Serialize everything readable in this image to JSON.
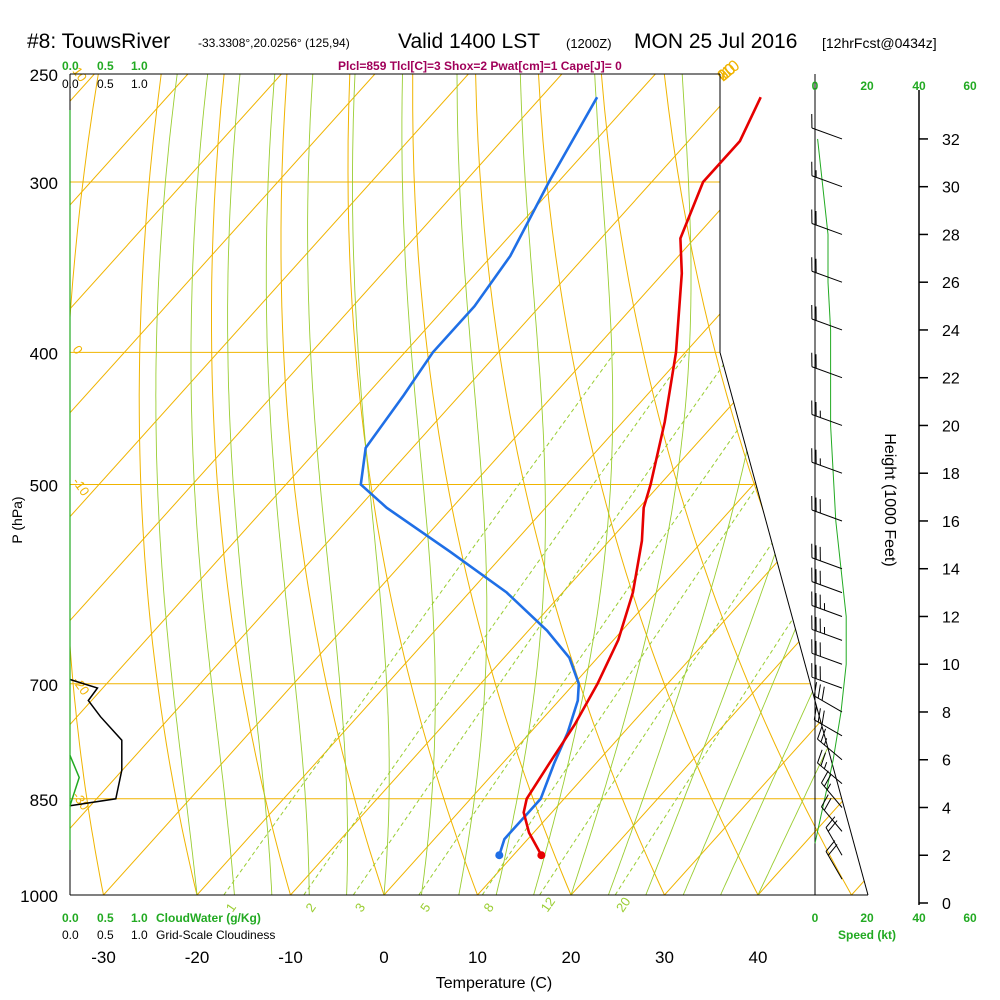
{
  "header": {
    "station": "#8: TouwsRiver",
    "coords": "-33.3308°,20.0256° (125,94)",
    "valid": "Valid 1400 LST",
    "zulu": "(1200Z)",
    "date": "MON 25 Jul 2016",
    "forecast": "[12hrFcst@0434z]",
    "indices": "Plcl=859 Tlcl[C]=3 Shox=2 Pwat[cm]=1 Cape[J]= 0"
  },
  "colors": {
    "isotherm": "#f0b400",
    "dry_adiabat": "#f0b400",
    "moist_adiabat": "#9acd32",
    "mixing_ratio": "#9acd32",
    "temperature": "#e60000",
    "dewpoint": "#1f6fe6",
    "cloudwater": "#22aa22",
    "cloudiness": "#000000",
    "wind_speed": "#22aa22",
    "indices_text": "#a0005a",
    "axis": "#000000"
  },
  "chart_data": {
    "type": "skew-t sounding",
    "xlabel": "Temperature (C)",
    "ylabel": "P (hPa)",
    "y2label": "Height (1000 Feet)",
    "x_ticks": [
      -30,
      -20,
      -10,
      0,
      10,
      20,
      30,
      40
    ],
    "pressure_ticks": [
      250,
      300,
      400,
      500,
      700,
      850,
      1000
    ],
    "height_ticks": [
      0,
      2,
      4,
      6,
      8,
      10,
      12,
      14,
      16,
      18,
      20,
      22,
      24,
      26,
      28,
      30,
      32
    ],
    "pressure_range_hPa": [
      250,
      1000
    ],
    "temperature_range_C": [
      -35,
      45
    ],
    "isotherm_labels": [
      -10,
      0,
      10,
      20,
      30
    ],
    "mixing_ratio_labels": [
      "1",
      "2",
      "3",
      "5",
      "8",
      "12",
      "20"
    ],
    "moist_adiabat_label_pressures": [
      250,
      400,
      500,
      700,
      850
    ],
    "moist_adiabat_labels_text": [
      "10",
      "0",
      "-10",
      "-20",
      "-30"
    ],
    "cloud_top_axis": {
      "cloudwater_labels": [
        "0.0",
        "0.5",
        "1.0"
      ],
      "cloudiness_labels": [
        "0.0",
        "0.5",
        "1.0"
      ]
    },
    "cloud_bottom_axis": {
      "cloudwater_labels": [
        "0.0",
        "0.5",
        "1.0"
      ],
      "cloudwater_title": "CloudWater (g/Kg)",
      "cloudiness_labels": [
        "0.0",
        "0.5",
        "1.0"
      ],
      "cloudiness_title": "Grid-Scale Cloudiness"
    },
    "wind_speed_axis": {
      "ticks": [
        "0",
        "20",
        "40",
        "60"
      ],
      "title": "Speed (kt)"
    },
    "temperature_profile": [
      {
        "p": 935,
        "t": 13.0
      },
      {
        "p": 900,
        "t": 9.5
      },
      {
        "p": 870,
        "t": 7.0
      },
      {
        "p": 850,
        "t": 6.0
      },
      {
        "p": 800,
        "t": 5.0
      },
      {
        "p": 750,
        "t": 4.0
      },
      {
        "p": 700,
        "t": 2.5
      },
      {
        "p": 650,
        "t": 0.5
      },
      {
        "p": 600,
        "t": -2.5
      },
      {
        "p": 550,
        "t": -6.5
      },
      {
        "p": 520,
        "t": -9.5
      },
      {
        "p": 500,
        "t": -11.0
      },
      {
        "p": 450,
        "t": -15.5
      },
      {
        "p": 400,
        "t": -21.0
      },
      {
        "p": 350,
        "t": -28.0
      },
      {
        "p": 330,
        "t": -31.5
      },
      {
        "p": 300,
        "t": -34.5
      },
      {
        "p": 280,
        "t": -34.5
      },
      {
        "p": 260,
        "t": -36.5
      }
    ],
    "dewpoint_profile": [
      {
        "p": 935,
        "t": 8.5
      },
      {
        "p": 910,
        "t": 7.5
      },
      {
        "p": 870,
        "t": 7.5
      },
      {
        "p": 850,
        "t": 7.5
      },
      {
        "p": 800,
        "t": 5.5
      },
      {
        "p": 760,
        "t": 4.0
      },
      {
        "p": 720,
        "t": 2.0
      },
      {
        "p": 700,
        "t": 0.5
      },
      {
        "p": 670,
        "t": -3.0
      },
      {
        "p": 640,
        "t": -8.0
      },
      {
        "p": 600,
        "t": -16.0
      },
      {
        "p": 560,
        "t": -26.0
      },
      {
        "p": 520,
        "t": -37.0
      },
      {
        "p": 500,
        "t": -42.0
      },
      {
        "p": 470,
        "t": -45.0
      },
      {
        "p": 430,
        "t": -46.0
      },
      {
        "p": 400,
        "t": -47.0
      },
      {
        "p": 370,
        "t": -47.0
      },
      {
        "p": 340,
        "t": -48.0
      },
      {
        "p": 300,
        "t": -51.0
      },
      {
        "p": 260,
        "t": -54.0
      }
    ],
    "surface_temperature_C": 13.0,
    "surface_dewpoint_C": 8.5,
    "grid_scale_cloudiness": [
      {
        "p": 860,
        "v": 0.0
      },
      {
        "p": 850,
        "v": 0.75
      },
      {
        "p": 810,
        "v": 0.85
      },
      {
        "p": 770,
        "v": 0.85
      },
      {
        "p": 740,
        "v": 0.5
      },
      {
        "p": 720,
        "v": 0.3
      },
      {
        "p": 705,
        "v": 0.45
      },
      {
        "p": 695,
        "v": 0.0
      }
    ],
    "cloud_water": [
      {
        "p": 860,
        "v": 0.0
      },
      {
        "p": 820,
        "v": 0.15
      },
      {
        "p": 790,
        "v": 0.0
      }
    ],
    "wind_speed_profile_kt": [
      {
        "h": 2.5,
        "v": 0
      },
      {
        "h": 3.5,
        "v": 2
      },
      {
        "h": 5,
        "v": 5
      },
      {
        "h": 6,
        "v": 7
      },
      {
        "h": 8,
        "v": 10
      },
      {
        "h": 10,
        "v": 12
      },
      {
        "h": 12,
        "v": 12
      },
      {
        "h": 14,
        "v": 10
      },
      {
        "h": 16,
        "v": 8
      },
      {
        "h": 18,
        "v": 7
      },
      {
        "h": 20,
        "v": 6
      },
      {
        "h": 22,
        "v": 6
      },
      {
        "h": 24,
        "v": 6
      },
      {
        "h": 26,
        "v": 5
      },
      {
        "h": 28,
        "v": 5
      },
      {
        "h": 30,
        "v": 3
      },
      {
        "h": 32,
        "v": 1
      }
    ],
    "wind_barbs": [
      {
        "h": 1,
        "dir": 330,
        "spd": 20
      },
      {
        "h": 2,
        "dir": 330,
        "spd": 20
      },
      {
        "h": 3,
        "dir": 320,
        "spd": 20
      },
      {
        "h": 4,
        "dir": 320,
        "spd": 25
      },
      {
        "h": 5,
        "dir": 310,
        "spd": 25
      },
      {
        "h": 6,
        "dir": 310,
        "spd": 25
      },
      {
        "h": 7,
        "dir": 300,
        "spd": 30
      },
      {
        "h": 8,
        "dir": 300,
        "spd": 30
      },
      {
        "h": 9,
        "dir": 290,
        "spd": 30
      },
      {
        "h": 10,
        "dir": 290,
        "spd": 30
      },
      {
        "h": 11,
        "dir": 290,
        "spd": 35
      },
      {
        "h": 12,
        "dir": 290,
        "spd": 35
      },
      {
        "h": 13,
        "dir": 290,
        "spd": 30
      },
      {
        "h": 14,
        "dir": 290,
        "spd": 30
      },
      {
        "h": 16,
        "dir": 290,
        "spd": 30
      },
      {
        "h": 18,
        "dir": 290,
        "spd": 25
      },
      {
        "h": 20,
        "dir": 290,
        "spd": 25
      },
      {
        "h": 22,
        "dir": 290,
        "spd": 20
      },
      {
        "h": 24,
        "dir": 290,
        "spd": 20
      },
      {
        "h": 26,
        "dir": 290,
        "spd": 20
      },
      {
        "h": 28,
        "dir": 290,
        "spd": 20
      },
      {
        "h": 30,
        "dir": 290,
        "spd": 15
      },
      {
        "h": 32,
        "dir": 290,
        "spd": 10
      }
    ]
  }
}
